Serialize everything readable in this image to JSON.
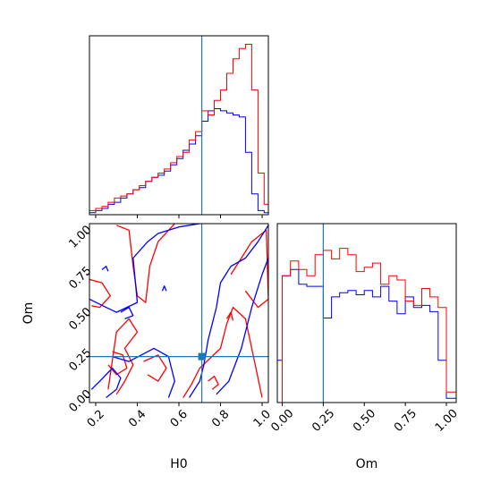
{
  "chart_data": {
    "type": "corner",
    "parameters": [
      "H0",
      "Om"
    ],
    "truth": {
      "H0": 0.71,
      "Om": 0.25
    },
    "colors": {
      "red": "#ff0000",
      "blue": "#0000ff",
      "truth": "#1f77b4"
    },
    "axes": {
      "H0": {
        "label": "H0",
        "range": [
          0.17,
          1.03
        ],
        "ticks": [
          "0.2",
          "0.4",
          "0.6",
          "0.8",
          "1.0"
        ]
      },
      "Om": {
        "label": "Om",
        "range": [
          -0.03,
          1.06
        ],
        "ticks": [
          "0.00",
          "0.25",
          "0.50",
          "0.75",
          "1.00"
        ]
      }
    },
    "histograms": {
      "H0": {
        "bin_edges": [
          0.17,
          0.2,
          0.23,
          0.26,
          0.29,
          0.32,
          0.35,
          0.38,
          0.41,
          0.44,
          0.47,
          0.5,
          0.53,
          0.56,
          0.59,
          0.62,
          0.65,
          0.68,
          0.71,
          0.74,
          0.77,
          0.8,
          0.83,
          0.86,
          0.89,
          0.92,
          0.95,
          0.98,
          1.01,
          1.03
        ],
        "red": [
          0.02,
          0.03,
          0.04,
          0.06,
          0.08,
          0.09,
          0.1,
          0.12,
          0.14,
          0.16,
          0.18,
          0.2,
          0.22,
          0.25,
          0.28,
          0.3,
          0.36,
          0.4,
          0.5,
          0.48,
          0.55,
          0.6,
          0.68,
          0.75,
          0.8,
          0.82,
          0.6,
          0.2,
          0.05
        ],
        "blue": [
          0.01,
          0.02,
          0.03,
          0.05,
          0.06,
          0.08,
          0.1,
          0.12,
          0.13,
          0.16,
          0.18,
          0.19,
          0.21,
          0.24,
          0.27,
          0.31,
          0.34,
          0.38,
          0.45,
          0.5,
          0.51,
          0.5,
          0.49,
          0.48,
          0.47,
          0.3,
          0.1,
          0.02,
          0.01
        ]
      },
      "Om": {
        "bin_edges": [
          -0.03,
          0.0,
          0.05,
          0.1,
          0.15,
          0.2,
          0.25,
          0.3,
          0.35,
          0.4,
          0.45,
          0.5,
          0.55,
          0.6,
          0.65,
          0.7,
          0.75,
          0.8,
          0.85,
          0.9,
          0.95,
          1.0,
          1.06
        ],
        "red": [
          0.0,
          0.6,
          0.67,
          0.63,
          0.6,
          0.7,
          0.72,
          0.68,
          0.73,
          0.7,
          0.62,
          0.64,
          0.66,
          0.56,
          0.6,
          0.58,
          0.48,
          0.46,
          0.54,
          0.5,
          0.45,
          0.05
        ],
        "blue": [
          0.2,
          0.6,
          0.63,
          0.56,
          0.55,
          0.55,
          0.4,
          0.5,
          0.52,
          0.53,
          0.51,
          0.53,
          0.5,
          0.55,
          0.48,
          0.42,
          0.5,
          0.45,
          0.46,
          0.43,
          0.2,
          0.02
        ]
      }
    },
    "contours": {
      "red": [
        [
          [
            0.17,
            0.72
          ],
          [
            0.23,
            0.7
          ],
          [
            0.27,
            0.62
          ],
          [
            0.22,
            0.55
          ],
          [
            0.18,
            0.56
          ]
        ],
        [
          [
            0.3,
            1.05
          ],
          [
            0.36,
            1.02
          ],
          [
            0.38,
            0.8
          ],
          [
            0.4,
            0.62
          ],
          [
            0.44,
            0.58
          ],
          [
            0.46,
            0.8
          ],
          [
            0.5,
            0.95
          ],
          [
            0.58,
            1.06
          ]
        ],
        [
          [
            0.28,
            0.28
          ],
          [
            0.33,
            0.26
          ],
          [
            0.35,
            0.18
          ],
          [
            0.3,
            0.14
          ],
          [
            0.26,
            0.2
          ]
        ],
        [
          [
            0.3,
            0.02
          ],
          [
            0.34,
            0.1
          ],
          [
            0.38,
            0.2
          ],
          [
            0.34,
            0.3
          ],
          [
            0.4,
            0.4
          ],
          [
            0.36,
            0.48
          ],
          [
            0.3,
            0.4
          ],
          [
            0.26,
            0.05
          ]
        ],
        [
          [
            0.43,
            0.22
          ],
          [
            0.5,
            0.26
          ],
          [
            0.54,
            0.18
          ],
          [
            0.5,
            0.1
          ],
          [
            0.45,
            0.14
          ]
        ],
        [
          [
            0.62,
            0.0
          ],
          [
            0.66,
            0.08
          ],
          [
            0.7,
            0.18
          ],
          [
            0.75,
            0.24
          ],
          [
            0.8,
            0.3
          ],
          [
            0.83,
            0.45
          ],
          [
            0.86,
            0.55
          ],
          [
            0.92,
            0.48
          ],
          [
            0.95,
            0.3
          ],
          [
            0.98,
            0.12
          ],
          [
            1.0,
            0.0
          ]
        ],
        [
          [
            0.85,
            0.75
          ],
          [
            0.9,
            0.85
          ],
          [
            0.95,
            0.95
          ],
          [
            1.02,
            1.02
          ],
          [
            1.03,
            0.6
          ],
          [
            0.98,
            0.55
          ],
          [
            0.92,
            0.65
          ]
        ],
        [
          [
            0.74,
            0.1
          ],
          [
            0.77,
            0.13
          ],
          [
            0.79,
            0.08
          ],
          [
            0.76,
            0.05
          ]
        ],
        [
          [
            0.83,
            0.48
          ],
          [
            0.85,
            0.52
          ],
          [
            0.86,
            0.47
          ]
        ]
      ],
      "blue": [
        [
          [
            0.17,
            0.6
          ],
          [
            0.25,
            0.55
          ],
          [
            0.3,
            0.52
          ],
          [
            0.4,
            0.58
          ],
          [
            0.38,
            0.85
          ],
          [
            0.45,
            0.95
          ],
          [
            0.5,
            1.0
          ],
          [
            0.6,
            1.04
          ],
          [
            0.7,
            1.06
          ]
        ],
        [
          [
            0.28,
            0.25
          ],
          [
            0.36,
            0.22
          ],
          [
            0.42,
            0.26
          ],
          [
            0.48,
            0.3
          ],
          [
            0.55,
            0.25
          ],
          [
            0.58,
            0.1
          ],
          [
            0.55,
            0.0
          ]
        ],
        [
          [
            0.25,
            0.0
          ],
          [
            0.3,
            0.05
          ],
          [
            0.32,
            0.12
          ],
          [
            0.28,
            0.18
          ],
          [
            0.22,
            0.1
          ],
          [
            0.18,
            0.05
          ]
        ],
        [
          [
            0.65,
            0.0
          ],
          [
            0.7,
            0.1
          ],
          [
            0.72,
            0.2
          ],
          [
            0.74,
            0.35
          ],
          [
            0.78,
            0.55
          ],
          [
            0.8,
            0.7
          ],
          [
            0.85,
            0.8
          ],
          [
            0.92,
            0.85
          ],
          [
            0.98,
            0.95
          ],
          [
            1.03,
            1.05
          ]
        ],
        [
          [
            0.78,
            0.02
          ],
          [
            0.84,
            0.1
          ],
          [
            0.9,
            0.3
          ],
          [
            0.95,
            0.55
          ],
          [
            1.0,
            0.75
          ],
          [
            1.03,
            0.85
          ]
        ],
        [
          [
            0.23,
            0.78
          ],
          [
            0.25,
            0.8
          ],
          [
            0.26,
            0.77
          ]
        ],
        [
          [
            0.52,
            0.65
          ],
          [
            0.53,
            0.68
          ],
          [
            0.54,
            0.65
          ]
        ],
        [
          [
            0.32,
            0.52
          ],
          [
            0.36,
            0.55
          ],
          [
            0.38,
            0.5
          ],
          [
            0.34,
            0.48
          ]
        ]
      ]
    }
  }
}
